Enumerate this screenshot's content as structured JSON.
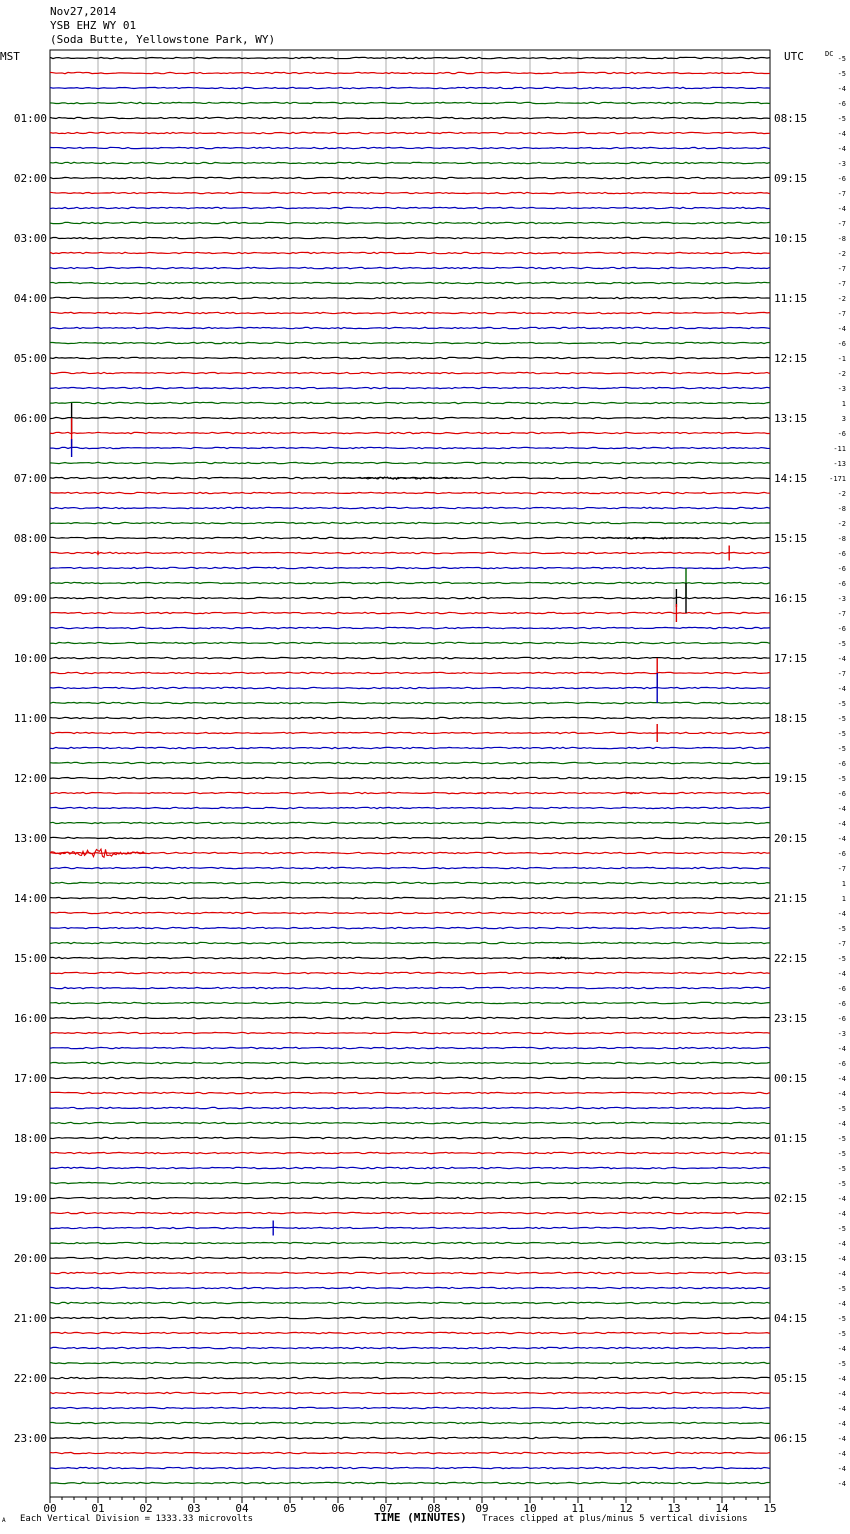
{
  "header": {
    "date": "Nov27,2014",
    "station": "YSB EHZ WY 01",
    "location": "(Soda Butte, Yellowstone Park, WY)"
  },
  "footer": {
    "left_mark": "A",
    "scale_note": "Each Vertical Division = 1333.33 microvolts",
    "clip_note": "Traces clipped at plus/minus 5 vertical divisions"
  },
  "chart_data": {
    "type": "line",
    "title": "YSB EHZ WY 01",
    "xlabel": "TIME (MINUTES)",
    "xlim": [
      0,
      15
    ],
    "x_ticks": [
      "00",
      "01",
      "02",
      "03",
      "04",
      "05",
      "06",
      "07",
      "08",
      "09",
      "10",
      "11",
      "12",
      "13",
      "14",
      "15"
    ],
    "left_axis_label": "MST",
    "right_axis_label": "UTC",
    "dc_label": "DC",
    "trace_colors": [
      "#000000",
      "#dd0000",
      "#0000bb",
      "#006600"
    ],
    "left_hour_labels": [
      "01:00",
      "02:00",
      "03:00",
      "04:00",
      "05:00",
      "06:00",
      "07:00",
      "08:00",
      "09:00",
      "10:00",
      "11:00",
      "12:00",
      "13:00",
      "14:00",
      "15:00",
      "16:00",
      "17:00",
      "18:00",
      "19:00",
      "20:00",
      "21:00",
      "22:00",
      "23:00"
    ],
    "right_hour_labels": [
      "08:15",
      "09:15",
      "10:15",
      "11:15",
      "12:15",
      "13:15",
      "14:15",
      "15:15",
      "16:15",
      "17:15",
      "18:15",
      "19:15",
      "20:15",
      "21:15",
      "22:15",
      "23:15",
      "00:15",
      "01:15",
      "02:15",
      "03:15",
      "04:15",
      "05:15",
      "06:15"
    ],
    "dc_offsets": [
      "-5",
      "-5",
      "-4",
      "-6",
      "-5",
      "-4",
      "-4",
      "-3",
      "-6",
      "-7",
      "-4",
      "-7",
      "-8",
      "-2",
      "-7",
      "-7",
      "-2",
      "-7",
      "-4",
      "-6",
      "-1",
      "-2",
      "-3",
      "1",
      "3",
      "-6",
      "-11",
      "-13",
      "-171",
      "-2",
      "-8",
      "-2",
      "-8",
      "-6",
      "-6",
      "-6",
      "-3",
      "-7",
      "-6",
      "-5",
      "-4",
      "-7",
      "-4",
      "-5",
      "-5",
      "-5",
      "-5",
      "-6",
      "-5",
      "-6",
      "-4",
      "-4",
      "-4",
      "-6",
      "-7",
      "1",
      "1",
      "-4",
      "-5",
      "-7",
      "-5",
      "-4",
      "-6",
      "-6",
      "-6",
      "-3",
      "-4",
      "-6",
      "-4",
      "-4",
      "-5",
      "-4",
      "-5",
      "-5",
      "-5",
      "-5",
      "-4",
      "-4",
      "-5",
      "-4",
      "-4",
      "-4",
      "-5",
      "-4",
      "-5",
      "-5",
      "-4",
      "-5",
      "-4",
      "-4",
      "-4",
      "-4",
      "-4",
      "-4",
      "-4",
      "-4"
    ],
    "events": [
      {
        "trace": 24,
        "x_minutes": 0.45,
        "amplitude": 1.0,
        "type": "spike"
      },
      {
        "trace": 25,
        "x_minutes": 0.45,
        "amplitude": 1.0,
        "type": "spike"
      },
      {
        "trace": 26,
        "x_minutes": 0.45,
        "amplitude": 0.6,
        "type": "spike"
      },
      {
        "trace": 28,
        "x_minutes": 6.0,
        "x_end_minutes": 8.5,
        "amplitude": 0.12,
        "type": "burst"
      },
      {
        "trace": 32,
        "x_minutes": 11.5,
        "x_end_minutes": 13.5,
        "amplitude": 0.1,
        "type": "burst"
      },
      {
        "trace": 33,
        "x_minutes": 1.0,
        "amplitude": 0.15,
        "type": "spike"
      },
      {
        "trace": 33,
        "x_minutes": 14.15,
        "amplitude": 0.5,
        "type": "spike"
      },
      {
        "trace": 35,
        "x_minutes": 13.25,
        "amplitude": 1.0,
        "type": "spike"
      },
      {
        "trace": 36,
        "x_minutes": 13.25,
        "amplitude": 1.0,
        "type": "spike"
      },
      {
        "trace": 36,
        "x_minutes": 13.05,
        "amplitude": 0.6,
        "type": "spike"
      },
      {
        "trace": 37,
        "x_minutes": 13.05,
        "amplitude": 0.6,
        "type": "spike"
      },
      {
        "trace": 41,
        "x_minutes": 12.65,
        "amplitude": 1.0,
        "type": "spike"
      },
      {
        "trace": 42,
        "x_minutes": 12.65,
        "amplitude": 1.0,
        "type": "spike"
      },
      {
        "trace": 45,
        "x_minutes": 12.65,
        "amplitude": 0.6,
        "type": "spike"
      },
      {
        "trace": 49,
        "x_minutes": 12.0,
        "x_end_minutes": 12.3,
        "amplitude": 0.12,
        "type": "burst"
      },
      {
        "trace": 49,
        "x_minutes": 8.9,
        "x_end_minutes": 9.0,
        "amplitude": 0.1,
        "type": "burst"
      },
      {
        "trace": 53,
        "x_minutes": 0.0,
        "x_end_minutes": 2.0,
        "amplitude": 0.35,
        "type": "quake"
      },
      {
        "trace": 60,
        "x_minutes": 10.4,
        "x_end_minutes": 11.0,
        "amplitude": 0.08,
        "type": "burst"
      },
      {
        "trace": 78,
        "x_minutes": 4.65,
        "amplitude": 0.5,
        "type": "spike"
      }
    ]
  }
}
